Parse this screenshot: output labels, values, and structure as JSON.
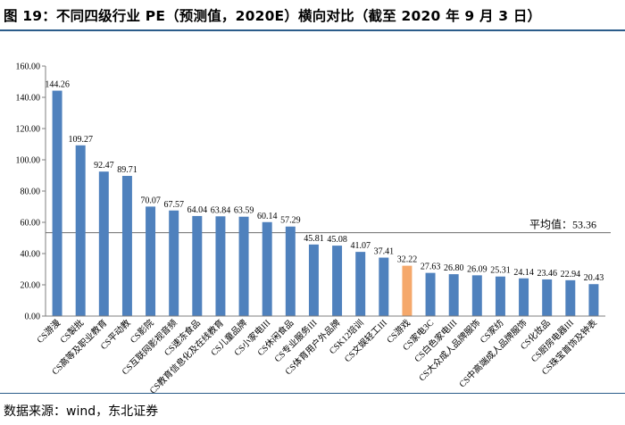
{
  "title": "图 19：不同四级行业 PE（预测值，2020E）横向对比（截至 2020 年 9 月 3 日）",
  "source": "数据来源：wind，东北证券",
  "colors": {
    "bar": "#4f81bd",
    "highlight": "#f5a86b",
    "axis": "#7f7f7f",
    "rule": "#2b5c8a"
  },
  "chart_data": {
    "type": "bar",
    "title": "不同四级行业 PE（预测值，2020E）横向对比（截至 2020 年 9 月 3 日）",
    "xlabel": "",
    "ylabel": "",
    "ylim": [
      0,
      160
    ],
    "yticks": [
      "0.00",
      "20.00",
      "40.00",
      "60.00",
      "80.00",
      "100.00",
      "120.00",
      "140.00",
      "160.00"
    ],
    "grid": false,
    "categories": [
      "CS游漫",
      "CS製批",
      "CS高等及职业教育",
      "CS平动教",
      "CS影院",
      "CS互联网影视音频",
      "CS速冻食品",
      "CS教育信息化及在线教育",
      "CS儿童品牌",
      "CS小家电III",
      "CS休闲食品",
      "CS专业服务III",
      "CS体育用户外品牌",
      "CSK12培训",
      "CS文娱轻工III",
      "CS游戏",
      "CS家电3C",
      "CS白色家电III",
      "CS大众成人品牌服饰",
      "CS家纺",
      "CS中高端成人品牌服饰",
      "CS化妆品",
      "CS厨房电器III",
      "CS珠宝首饰及钟表"
    ],
    "values": [
      144.26,
      109.27,
      92.47,
      89.71,
      70.07,
      67.57,
      64.04,
      63.84,
      63.59,
      60.14,
      57.29,
      45.81,
      45.08,
      41.07,
      37.41,
      32.22,
      27.63,
      26.8,
      26.09,
      25.31,
      24.14,
      23.46,
      22.94,
      20.43
    ],
    "value_labels": [
      "144.26",
      "109.27",
      "92.47",
      "89.71",
      "70.07",
      "67.57",
      "64.04",
      "63.84",
      "63.59",
      "60.14",
      "57.29",
      "45.81",
      "45.08",
      "41.07",
      "37.41",
      "32.22",
      "27.63",
      "26.80",
      "26.09",
      "25.31",
      "24.14",
      "23.46",
      "22.94",
      "20.43"
    ],
    "highlight_category": "CS游戏",
    "reference_line": {
      "label": "平均值：53.36",
      "value": 53.36
    }
  }
}
